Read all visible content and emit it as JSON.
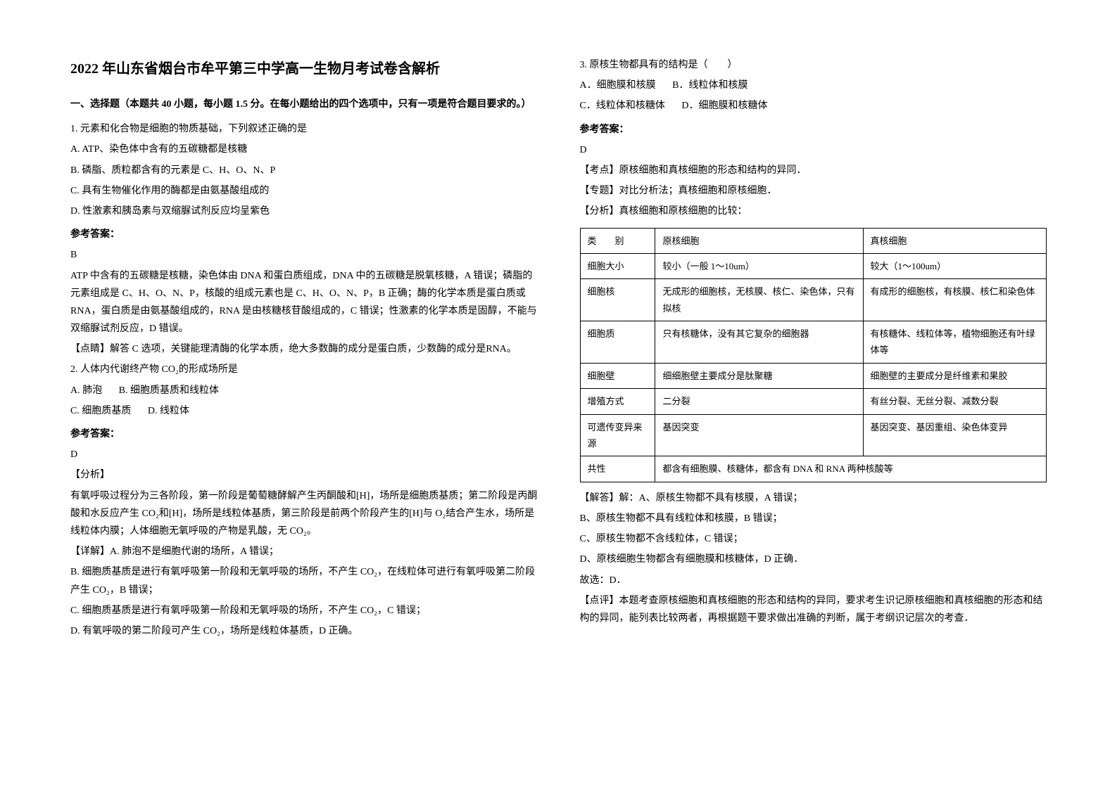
{
  "title": "2022 年山东省烟台市牟平第三中学高一生物月考试卷含解析",
  "section_header": "一、选择题（本题共 40 小题，每小题 1.5 分。在每小题给出的四个选项中，只有一项是符合题目要求的。）",
  "q1": {
    "stem": "1. 元素和化合物是细胞的物质基础，下列叙述正确的是",
    "optA": "A. ATP、染色体中含有的五碳糖都是核糖",
    "optB": "B. 磷脂、质粒都含有的元素是 C、H、O、N、P",
    "optC": "C. 具有生物催化作用的酶都是由氨基酸组成的",
    "optD": "D. 性激素和胰岛素与双缩脲试剂反应均呈紫色",
    "answer_label": "参考答案：",
    "answer": "B",
    "explanation": "ATP 中含有的五碳糖是核糖，染色体由 DNA 和蛋白质组成，DNA 中的五碳糖是脱氧核糖，A 错误；磷脂的元素组成是 C、H、O、N、P，核酸的组成元素也是 C、H、O、N、P，B 正确；酶的化学本质是蛋白质或 RNA，蛋白质是由氨基酸组成的，RNA 是由核糖核苷酸组成的，C 错误；性激素的化学本质是固醇，不能与双缩脲试剂反应，D 错误。",
    "tip": "【点睛】解答 C 选项，关键能理清酶的化学本质，绝大多数酶的成分是蛋白质，少数酶的成分是RNA。"
  },
  "q2": {
    "stem": "2. 人体内代谢终产物 CO₂的形成场所是",
    "optA": "A. 肺泡",
    "optB": "B. 细胞质基质和线粒体",
    "optC": "C. 细胞质基质",
    "optD": "D. 线粒体",
    "answer_label": "参考答案：",
    "answer": "D",
    "analysis_label": "【分析】",
    "analysis": "有氧呼吸过程分为三各阶段，第一阶段是葡萄糖酵解产生丙酮酸和[H]，场所是细胞质基质；第二阶段是丙酮酸和水反应产生 CO₂和[H]，场所是线粒体基质，第三阶段是前两个阶段产生的[H]与 O₂结合产生水，场所是线粒体内膜；人体细胞无氧呼吸的产物是乳酸，无 CO₂。",
    "detail_A": "【详解】A. 肺泡不是细胞代谢的场所，A 错误；",
    "detail_B": "B. 细胞质基质是进行有氧呼吸第一阶段和无氧呼吸的场所，不产生 CO₂，在线粒体可进行有氧呼吸第二阶段产生 CO₂，B 错误；",
    "detail_C": "C. 细胞质基质是进行有氧呼吸第一阶段和无氧呼吸的场所，不产生 CO₂，C 错误；",
    "detail_D": "D. 有氧呼吸的第二阶段可产生 CO₂，场所是线粒体基质，D 正确。"
  },
  "q3": {
    "stem": "3. 原核生物都具有的结构是（　　）",
    "optA": "A．细胞膜和核膜",
    "optB": "B．线粒体和核膜",
    "optC": "C．线粒体和核糖体",
    "optD": "D．细胞膜和核糖体",
    "answer_label": "参考答案：",
    "answer": "D",
    "kaodian": "【考点】原核细胞和真核细胞的形态和结构的异同．",
    "zhuanti": "【专题】对比分析法；真核细胞和原核细胞．",
    "fenxi_label": "【分析】真核细胞和原核细胞的比较：",
    "jieda_A": "【解答】解：A、原核生物都不具有核膜，A 错误；",
    "jieda_B": "B、原核生物都不具有线粒体和核膜，B 错误；",
    "jieda_C": "C、原核生物都不含线粒体，C 错误；",
    "jieda_D": "D、原核细胞生物都含有细胞膜和核糖体，D 正确．",
    "guxuan": "故选：D．",
    "dianping": "【点评】本题考查原核细胞和真核细胞的形态和结构的异同，要求考生识记原核细胞和真核细胞的形态和结构的异同，能列表比较两者，再根据题干要求做出准确的判断，属于考纲识记层次的考查．"
  },
  "table": {
    "headers": [
      "类　　别",
      "原核细胞",
      "真核细胞"
    ],
    "rows": [
      [
        "细胞大小",
        "较小（一般 1～10um）",
        "较大（1～100um）"
      ],
      [
        "细胞核",
        "无成形的细胞核，无核膜、核仁、染色体，只有拟核",
        "有成形的细胞核，有核膜、核仁和染色体"
      ],
      [
        "细胞质",
        "只有核糖体，没有其它复杂的细胞器",
        "有核糖体、线粒体等，植物细胞还有叶绿体等"
      ],
      [
        "细胞壁",
        "细细胞壁主要成分是肽聚糖",
        "细胞壁的主要成分是纤维素和果胶"
      ],
      [
        "增殖方式",
        "二分裂",
        "有丝分裂、无丝分裂、减数分裂"
      ],
      [
        "可遗传变异来源",
        "基因突变",
        "基因突变、基因重组、染色体变异"
      ]
    ],
    "shared_row": [
      "共性",
      "都含有细胞膜、核糖体，都含有 DNA 和 RNA 两种核酸等"
    ]
  }
}
